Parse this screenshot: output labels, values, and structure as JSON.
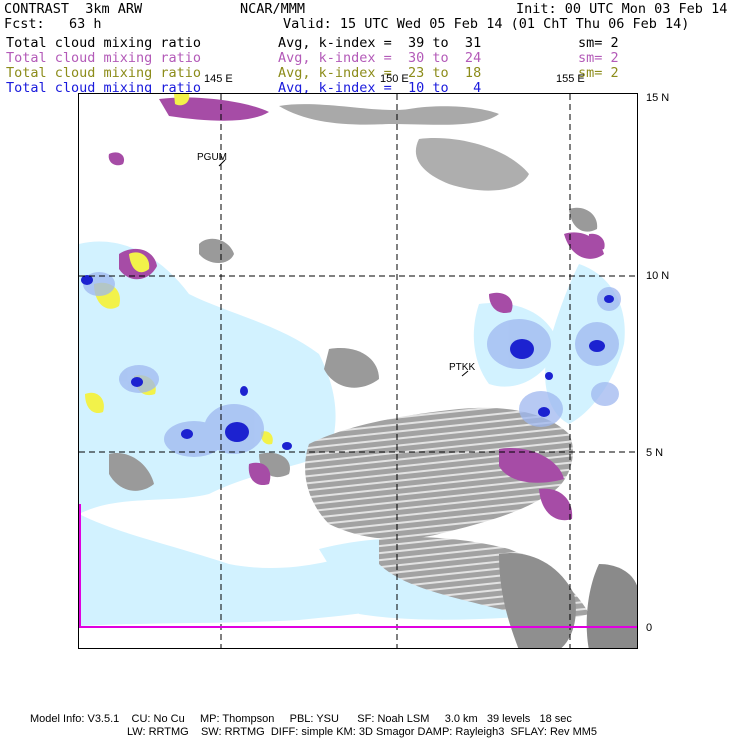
{
  "header": {
    "model": "CONTRAST  3km ARW",
    "org": "NCAR/MMM",
    "init": "Init: 00 UTC Mon 03 Feb 14",
    "fcst": "Fcst:   63 h",
    "valid": "Valid: 15 UTC Wed 05 Feb 14 (01 ChT Thu 06 Feb 14)"
  },
  "fields": [
    {
      "name": "Total cloud mixing ratio",
      "stat": "Avg, k-index =  39 to  31",
      "sm": "sm= 2",
      "color": "#000000"
    },
    {
      "name": "Total cloud mixing ratio",
      "stat": "Avg, k-index =  30 to  24",
      "sm": "sm= 2",
      "color": "#b35ab8"
    },
    {
      "name": "Total cloud mixing ratio",
      "stat": "Avg, k-index =  23 to  18",
      "sm": "sm= 2",
      "color": "#8c8c1a"
    },
    {
      "name": "Total cloud mixing ratio",
      "stat": "Avg, k-index =  10 to   4",
      "sm": "",
      "color": "#1a1adc"
    }
  ],
  "map": {
    "lon_labels": [
      "145 E",
      "150 E",
      "155 E"
    ],
    "lat_labels": [
      "15 N",
      "10 N",
      "5 N",
      "0"
    ],
    "stations": [
      "PGUM",
      "PTKK"
    ],
    "field_colors": {
      "gray": "#9a9a9a",
      "violet": "#a64ca6",
      "yellow": "#f2f24a",
      "light_blue": "#d2f2ff",
      "mid_blue": "#9fb8f0",
      "deep_blue": "#1c22d0",
      "equator_line": "#e000e0"
    }
  },
  "footer": {
    "line1": "Model Info: V3.5.1    CU: No Cu     MP: Thompson     PBL: YSU      SF: Noah LSM     3.0 km   39 levels   18 sec",
    "line2": "LW: RRTMG    SW: RRTMG  DIFF: simple KM: 3D Smagor DAMP: Rayleigh3  SFLAY: Rev MM5"
  }
}
